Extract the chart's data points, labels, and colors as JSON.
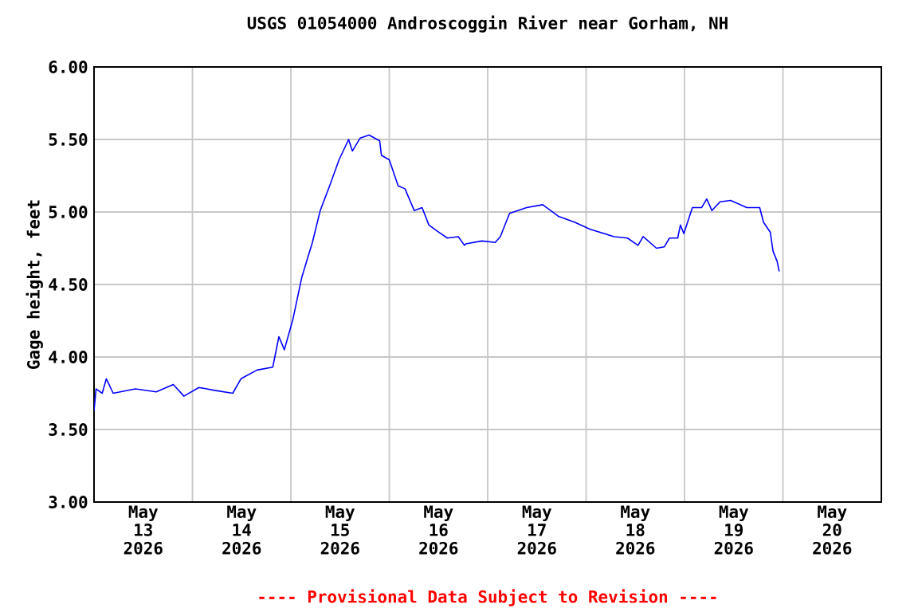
{
  "chart_data": {
    "type": "line",
    "title": "USGS 01054000 Androscoggin River near Gorham, NH",
    "ylabel": "Gage height, feet",
    "annotations": [
      "---- Provisional Data Subject to Revision ----"
    ],
    "xlim": [
      "2026-05-13",
      "2026-05-21"
    ],
    "ylim": [
      3,
      6
    ],
    "xticks": [
      {
        "value": "2026-05-14",
        "label": null
      },
      {
        "value": "2026-05-15",
        "label": null
      },
      {
        "value": "2026-05-16",
        "label": null
      },
      {
        "value": "2026-05-17",
        "label": null
      },
      {
        "value": "2026-05-18",
        "label": null
      },
      {
        "value": "2026-05-19",
        "label": null
      },
      {
        "value": "2026-05-20",
        "label": null
      },
      {
        "value": "2026-05-13T12:00",
        "label": "May 13 2026"
      },
      {
        "value": "2026-05-14T12:00",
        "label": "May 14 2026"
      },
      {
        "value": "2026-05-15T12:00",
        "label": "May 15 2026"
      },
      {
        "value": "2026-05-16T12:00",
        "label": "May 16 2026"
      },
      {
        "value": "2026-05-17T12:00",
        "label": "May 17 2026"
      },
      {
        "value": "2026-05-18T12:00",
        "label": "May 18 2026"
      },
      {
        "value": "2026-05-19T12:00",
        "label": "May 19 2026"
      },
      {
        "value": "2026-05-20T12:00",
        "label": "May 20 2026"
      }
    ],
    "yticks": [
      {
        "value": 3,
        "label": "3.00"
      },
      {
        "value": 3.5,
        "label": "3.50"
      },
      {
        "value": 4,
        "label": "4.00"
      },
      {
        "value": 4.5,
        "label": "4.50"
      },
      {
        "value": 5,
        "label": "5.00"
      },
      {
        "value": 5.5,
        "label": "5.50"
      },
      {
        "value": 6,
        "label": "6.00"
      }
    ],
    "grid": true,
    "marker": "none",
    "line_style": "solid",
    "series": [
      {
        "color": "#0000ff",
        "x": [
          "2026-05-13T00:00",
          "2026-05-13T00:30",
          "2026-05-13T02:00",
          "2026-05-13T03:00",
          "2026-05-13T04:40",
          "2026-05-13T10:05",
          "2026-05-13T15:10",
          "2026-05-13T19:20",
          "2026-05-13T21:55",
          "2026-05-14T01:35",
          "2026-05-14T05:25",
          "2026-05-14T09:50",
          "2026-05-14T11:50",
          "2026-05-14T15:45",
          "2026-05-14T19:35",
          "2026-05-14T21:05",
          "2026-05-14T22:25",
          "2026-05-15T00:30",
          "2026-05-15T02:40",
          "2026-05-15T05:15",
          "2026-05-15T07:10",
          "2026-05-15T09:35",
          "2026-05-15T11:45",
          "2026-05-15T14:05",
          "2026-05-15T15:00",
          "2026-05-15T16:55",
          "2026-05-15T19:05",
          "2026-05-15T21:40",
          "2026-05-15T22:05",
          "2026-05-16T00:00",
          "2026-05-16T02:10",
          "2026-05-16T03:50",
          "2026-05-16T06:05",
          "2026-05-16T08:00",
          "2026-05-16T09:40",
          "2026-05-16T11:35",
          "2026-05-16T14:10",
          "2026-05-16T16:50",
          "2026-05-16T18:20",
          "2026-05-16T18:40",
          "2026-05-16T22:35",
          "2026-05-17T01:50",
          "2026-05-17T03:05",
          "2026-05-17T05:20",
          "2026-05-17T09:30",
          "2026-05-17T13:25",
          "2026-05-17T17:15",
          "2026-05-17T21:10",
          "2026-05-18T01:00",
          "2026-05-18T06:50",
          "2026-05-18T10:05",
          "2026-05-18T12:40",
          "2026-05-18T13:55",
          "2026-05-18T17:10",
          "2026-05-18T19:05",
          "2026-05-18T20:20",
          "2026-05-18T22:20",
          "2026-05-18T23:00",
          "2026-05-18T23:50",
          "2026-05-19T01:55",
          "2026-05-19T04:10",
          "2026-05-19T05:25",
          "2026-05-19T06:40",
          "2026-05-19T08:40",
          "2026-05-19T11:15",
          "2026-05-19T15:10",
          "2026-05-19T18:20",
          "2026-05-19T19:15",
          "2026-05-19T20:55",
          "2026-05-19T21:35",
          "2026-05-19T22:35",
          "2026-05-19T23:05"
        ],
        "values": [
          3.63,
          3.78,
          3.75,
          3.85,
          3.75,
          3.78,
          3.76,
          3.81,
          3.73,
          3.79,
          3.77,
          3.75,
          3.85,
          3.91,
          3.93,
          4.14,
          4.05,
          4.26,
          4.55,
          4.79,
          5.01,
          5.19,
          5.36,
          5.5,
          5.42,
          5.51,
          5.53,
          5.49,
          5.39,
          5.36,
          5.18,
          5.16,
          5.01,
          5.03,
          4.91,
          4.87,
          4.82,
          4.83,
          4.77,
          4.78,
          4.8,
          4.79,
          4.83,
          4.99,
          5.03,
          5.05,
          4.97,
          4.93,
          4.88,
          4.83,
          4.82,
          4.77,
          4.83,
          4.75,
          4.76,
          4.82,
          4.82,
          4.91,
          4.85,
          5.03,
          5.03,
          5.09,
          5.01,
          5.07,
          5.08,
          5.03,
          5.03,
          4.93,
          4.86,
          4.73,
          4.66,
          4.59
        ]
      }
    ]
  }
}
